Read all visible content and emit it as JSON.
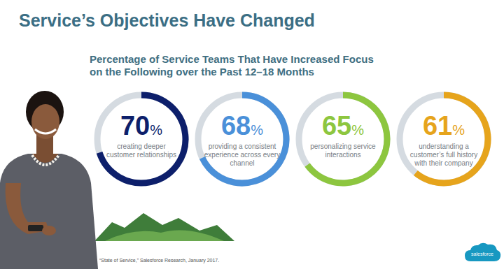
{
  "slide": {
    "title": "Service’s Objectives Have Changed",
    "source": "“State of Service,” Salesforce Research, January 2017.",
    "logo": "salesforce"
  },
  "chart_data": {
    "type": "donut",
    "title": "Percentage of Service Teams That Have Increased Focus on the Following over the Past 12–18 Months",
    "categories": [
      "creating deeper customer relationships",
      "providing a consistent experience across every channel",
      "personalizing service interactions",
      "understanding a customer’s full history with their company"
    ],
    "values": [
      70,
      68,
      65,
      61
    ],
    "value_labels": [
      "70%",
      "68%",
      "65%",
      "61%"
    ],
    "colors": [
      "#0d1f6b",
      "#4a90d9",
      "#8dc63f",
      "#e6a41c"
    ],
    "ylim": [
      0,
      100
    ],
    "data_labels": true
  }
}
